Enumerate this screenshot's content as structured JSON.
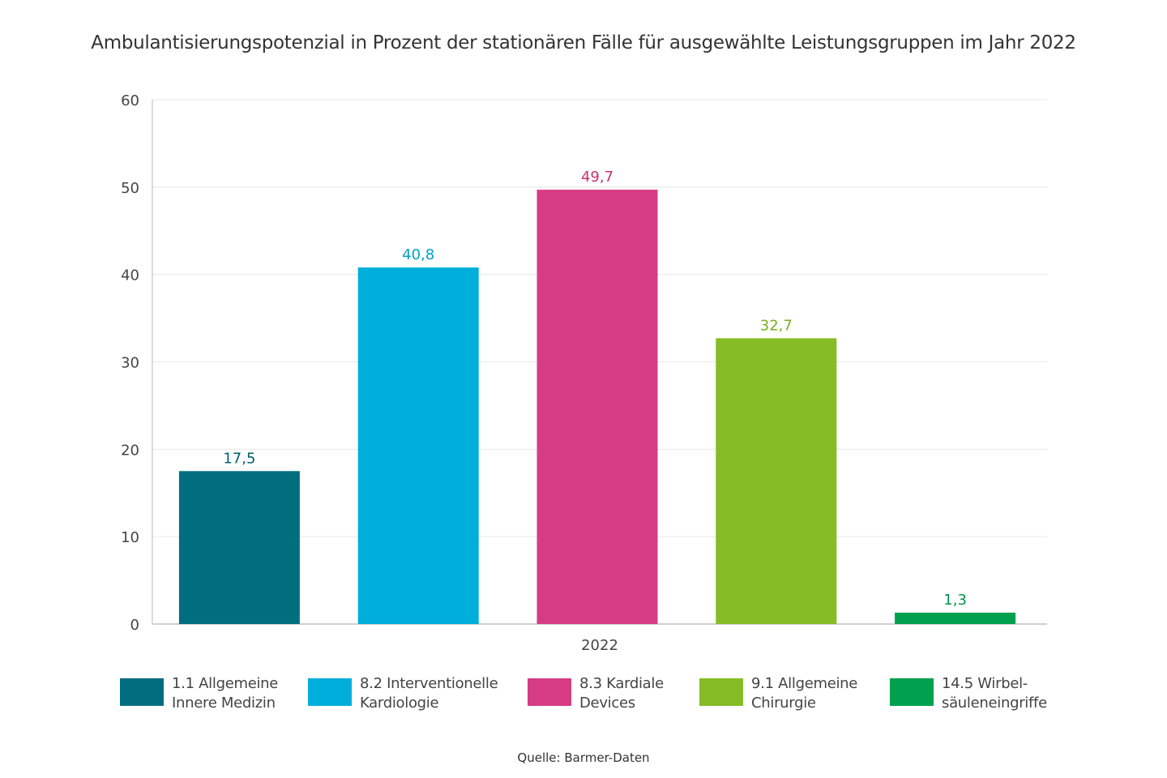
{
  "chart_data": {
    "type": "bar",
    "title": "Ambulantisierungspotenzial in Prozent der stationären Fälle für ausgewählte Leistungsgruppen im Jahr 2022",
    "xlabel": "",
    "ylabel": "",
    "x_category": "2022",
    "ylim": [
      0,
      60
    ],
    "yticks": [
      0,
      10,
      20,
      30,
      40,
      50,
      60
    ],
    "grid": true,
    "legend_position": "bottom",
    "series": [
      {
        "name": "1.1 Allgemeine\nInnere Medizin",
        "value": 17.5,
        "label": "17,5",
        "color": "#006E7F",
        "label_color": "#005E6E"
      },
      {
        "name": "8.2 Interventionelle\nKardiologie",
        "value": 40.8,
        "label": "40,8",
        "color": "#00AEDB",
        "label_color": "#00A0C8"
      },
      {
        "name": "8.3 Kardiale\nDevices",
        "value": 49.7,
        "label": "49,7",
        "color": "#D63C84",
        "label_color": "#C8306F"
      },
      {
        "name": "9.1 Allgemeine\nChirurgie",
        "value": 32.7,
        "label": "32,7",
        "color": "#86BC25",
        "label_color": "#7AAE1E"
      },
      {
        "name": "14.5 Wirbel-\nsäuleneingriffe",
        "value": 1.3,
        "label": "1,3",
        "color": "#00A04F",
        "label_color": "#00934A"
      }
    ],
    "source": "Quelle: Barmer-Daten"
  }
}
